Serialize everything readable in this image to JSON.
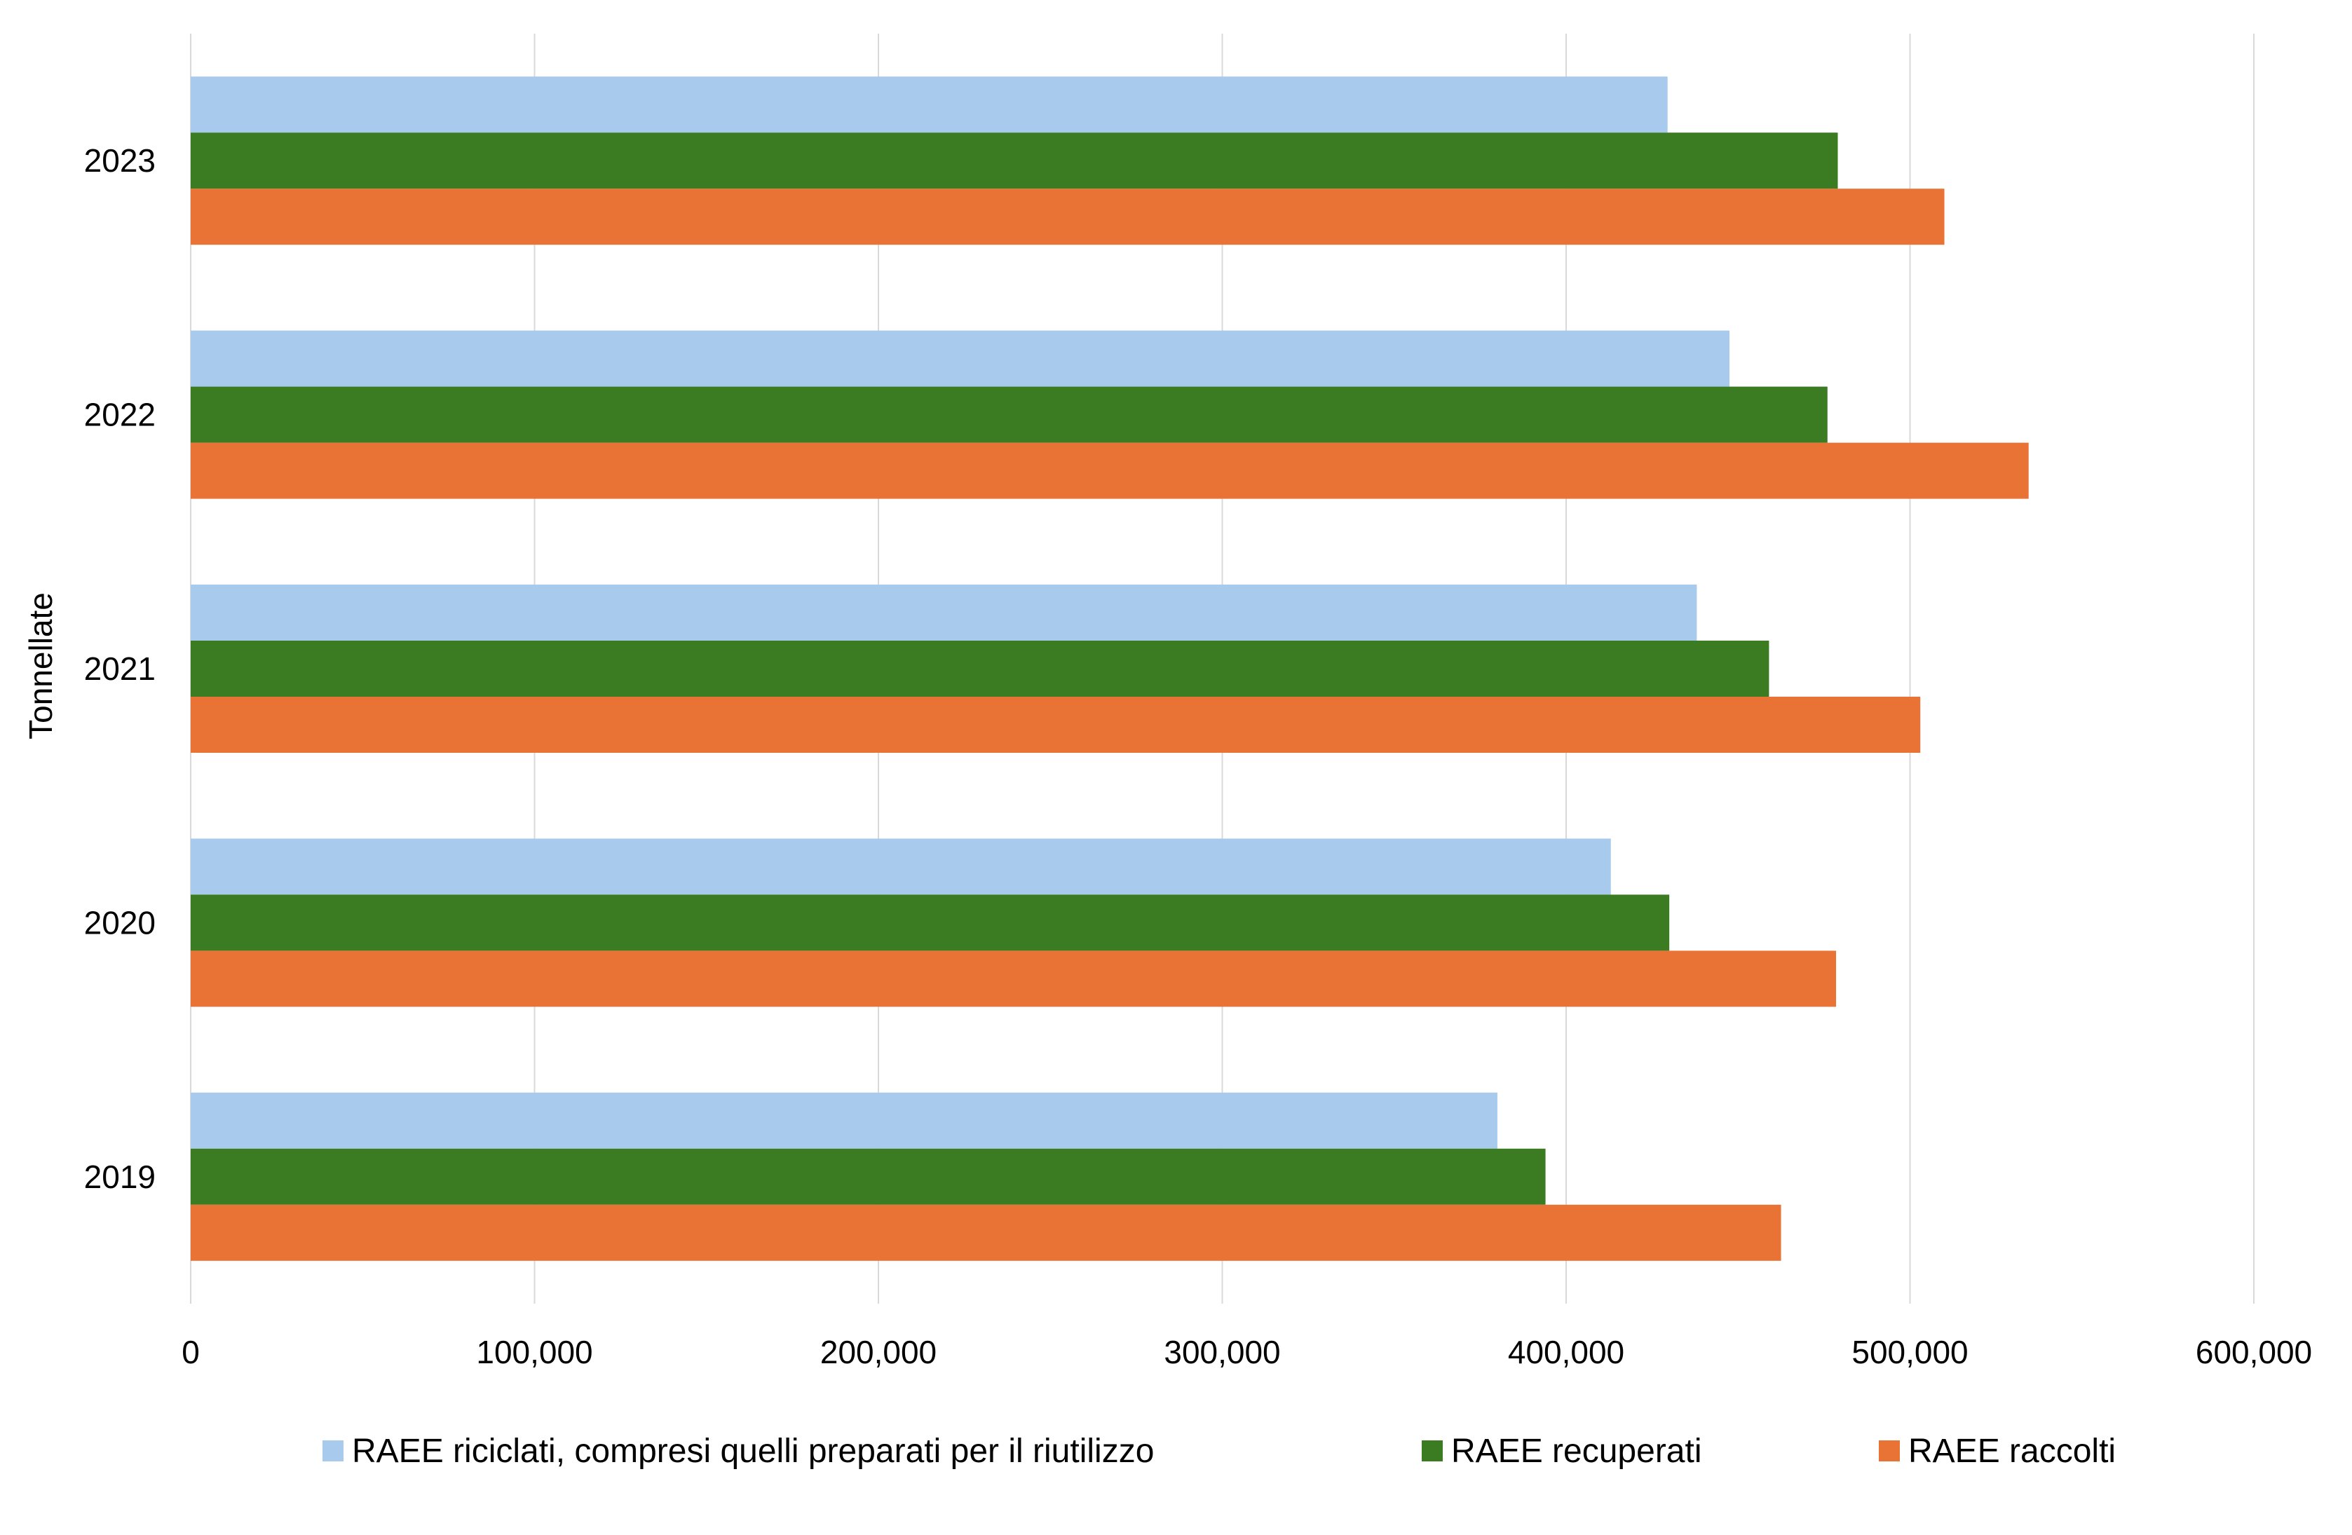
{
  "chart_data": {
    "type": "bar",
    "orientation": "horizontal",
    "categories": [
      "2023",
      "2022",
      "2021",
      "2020",
      "2019"
    ],
    "series": [
      {
        "name": "RAEE riciclati, compresi quelli preparati per il riutilizzo",
        "color": "#A7CAED",
        "values": [
          429500,
          447500,
          438000,
          413000,
          380000
        ]
      },
      {
        "name": "RAEE recuperati",
        "color": "#3B7C22",
        "values": [
          479000,
          476000,
          459000,
          430000,
          394000
        ]
      },
      {
        "name": "RAEE raccolti",
        "color": "#E97334",
        "values": [
          510000,
          534500,
          503000,
          478500,
          462500
        ]
      }
    ],
    "title": "",
    "xlabel": "",
    "ylabel": "Tonnellate",
    "xlim": [
      0,
      600000
    ],
    "xticks": [
      "0",
      "100,000",
      "200,000",
      "300,000",
      "400,000",
      "500,000",
      "600,000"
    ],
    "grid": "vertical",
    "legend": "bottom"
  }
}
